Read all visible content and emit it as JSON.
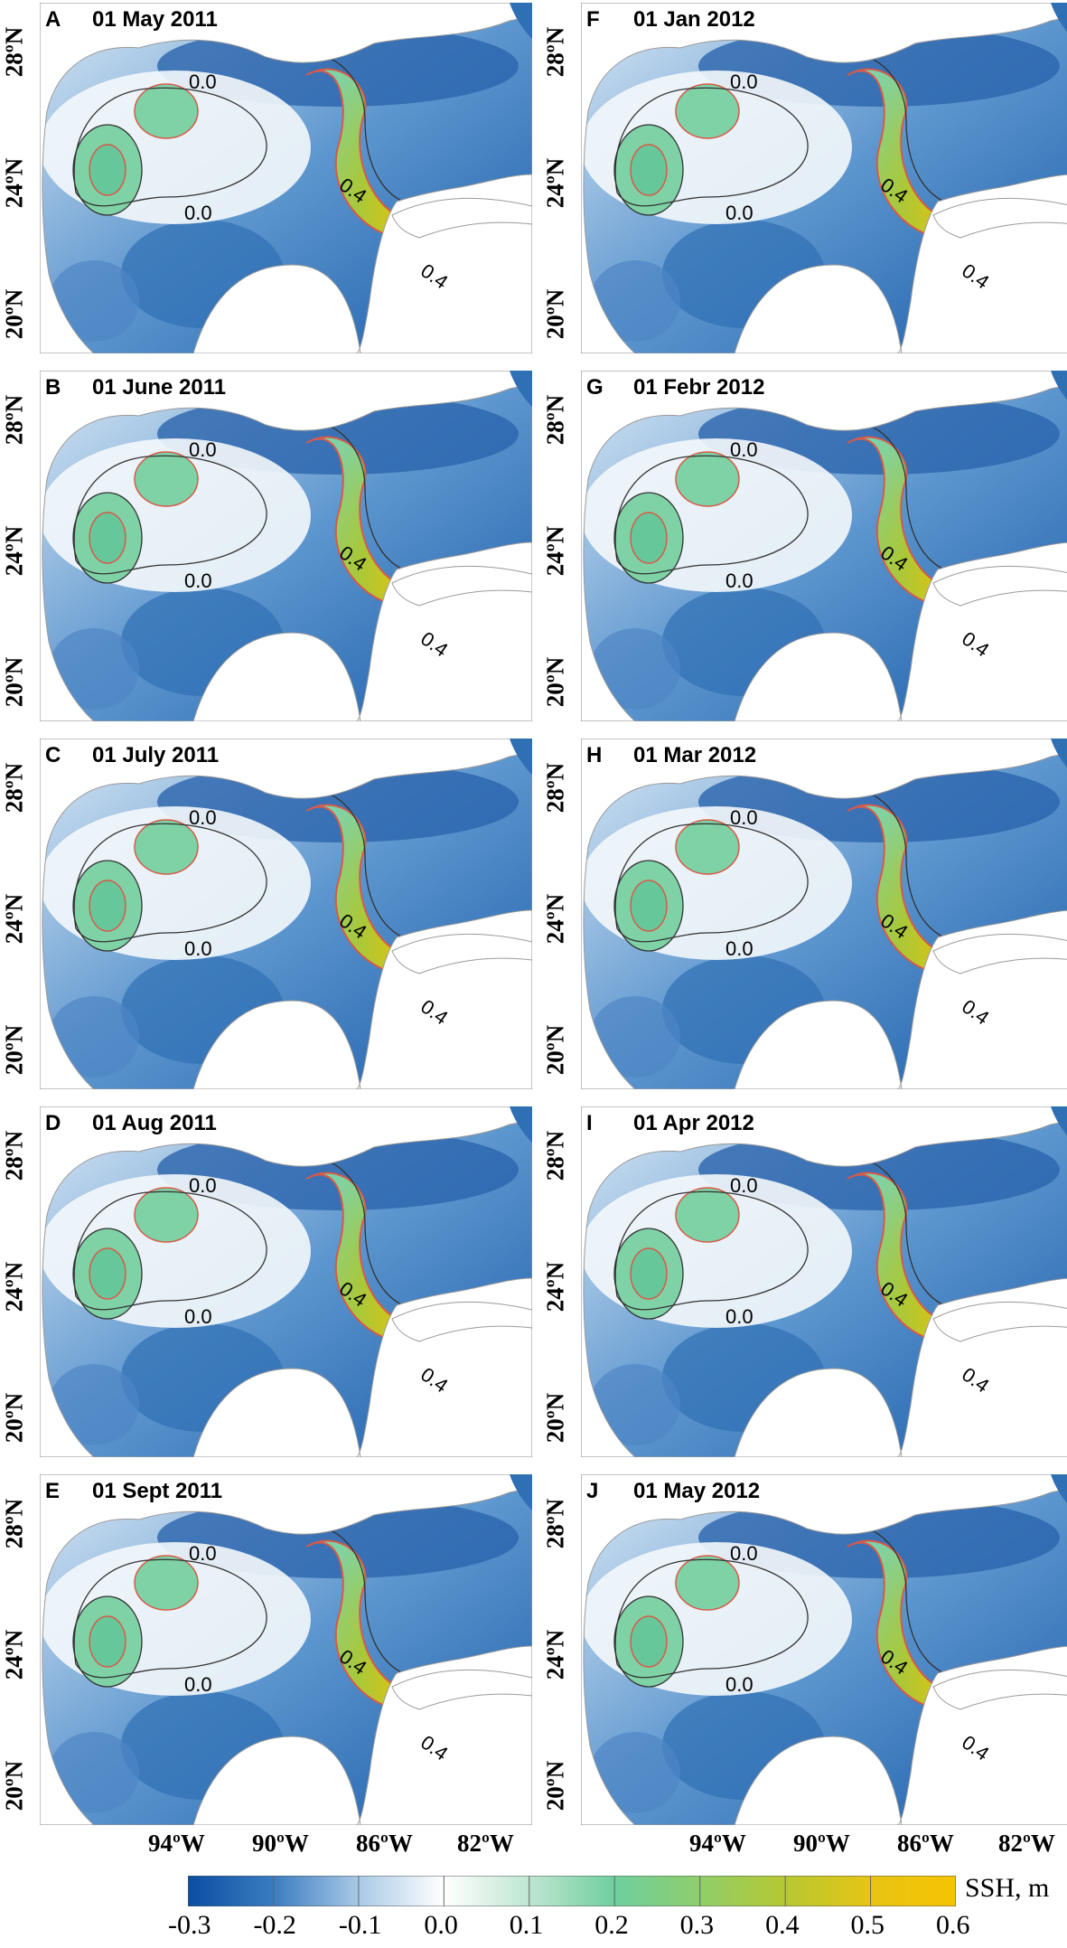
{
  "panels": [
    {
      "label": "A",
      "title": "01 May 2011"
    },
    {
      "label": "B",
      "title": "01 June 2011"
    },
    {
      "label": "C",
      "title": "01 July 2011"
    },
    {
      "label": "D",
      "title": "01 Aug 2011"
    },
    {
      "label": "E",
      "title": "01 Sept 2011"
    },
    {
      "label": "F",
      "title": "01 Jan 2012"
    },
    {
      "label": "G",
      "title": "01 Febr 2012"
    },
    {
      "label": "H",
      "title": "01 Mar 2012"
    },
    {
      "label": "I",
      "title": "01 Apr 2012"
    },
    {
      "label": "J",
      "title": "01 May 2012"
    }
  ],
  "contour_labels": {
    "zero": "0.0",
    "four": "0.4"
  },
  "y_ticks": [
    "20ºN",
    "24ºN",
    "28ºN"
  ],
  "x_ticks": [
    "94ºW",
    "90ºW",
    "86ºW",
    "82ºW"
  ],
  "colorbar": {
    "label": "SSH, m",
    "ticks": [
      "-0.3",
      "-0.2",
      "-0.1",
      "0.0",
      "0.1",
      "0.2",
      "0.3",
      "0.4",
      "0.5",
      "0.6"
    ],
    "colors": [
      "#0b4ea2",
      "#3a7cc0",
      "#a9c9e6",
      "#ffffff",
      "#bfe6d1",
      "#6fcf9f",
      "#8fce6a",
      "#b6c832",
      "#e8c415",
      "#f5c400"
    ],
    "range": [
      -0.3,
      0.6
    ]
  },
  "colors": {
    "land": "#ffffff",
    "coast": "#9a9a9a",
    "contour": "#333333",
    "contour_red": "#d65a4a",
    "deep_blue": "#2f6fb4"
  }
}
